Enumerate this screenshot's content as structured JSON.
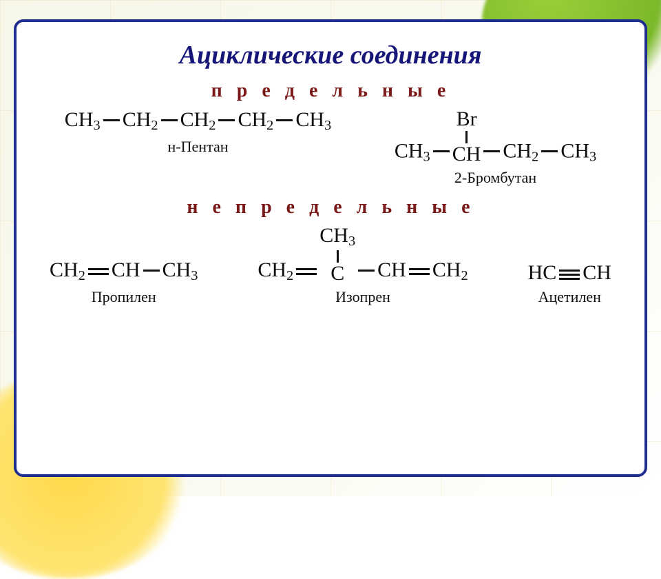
{
  "colors": {
    "card_border": "#1f2f8f",
    "title_color": "#161679",
    "subhead_color": "#7a1918",
    "formula_color": "#101010",
    "name_color": "#101010",
    "bg_page": "#f8f7ea"
  },
  "typography": {
    "title_fontsize_pt": 28,
    "subhead_fontsize_pt": 20,
    "formula_fontsize_pt": 22,
    "name_fontsize_pt": 16,
    "font_family": "Times New Roman"
  },
  "title": "Ациклические соединения",
  "sections": {
    "saturated": {
      "heading": "п р е д е л ь н ы е",
      "compounds": [
        {
          "name": "н-Пентан",
          "structure_type": "saturated-chain",
          "formula_tokens": [
            "CH3",
            "-",
            "CH2",
            "-",
            "CH2",
            "-",
            "CH2",
            "-",
            "CH3"
          ]
        },
        {
          "name": "2-Бромбутан",
          "structure_type": "saturated-substituted",
          "substituent_label": "Br",
          "formula_tokens": [
            "CH3",
            "-",
            "{sub:Br}CH",
            "-",
            "CH2",
            "-",
            "CH3"
          ]
        }
      ]
    },
    "unsaturated": {
      "heading": "н е п р е д е л ь н ы е",
      "compounds": [
        {
          "name": "Пропилен",
          "structure_type": "alkene",
          "formula_tokens": [
            "CH2",
            "=",
            "CH",
            "-",
            "CH3"
          ]
        },
        {
          "name": "Изопрен",
          "structure_type": "diene-substituted",
          "substituent_label": "CH3",
          "formula_tokens": [
            "CH2",
            "=",
            "{sub:CH3}C",
            "-",
            "CH",
            "=",
            "CH2"
          ]
        },
        {
          "name": "Ацетилен",
          "structure_type": "alkyne",
          "formula_tokens": [
            "HC",
            "#",
            "CH"
          ]
        }
      ]
    }
  }
}
